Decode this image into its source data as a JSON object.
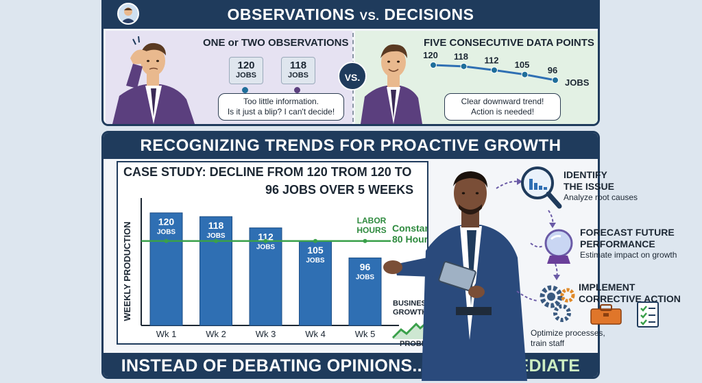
{
  "top": {
    "title_main1": "OBSERVATIONS",
    "title_vs": "VS.",
    "title_main2": "DECISIONS",
    "vs_badge": "VS.",
    "left": {
      "heading": "ONE or TWO OBSERVATIONS",
      "observations": [
        {
          "value": "120",
          "unit": "JOBS"
        },
        {
          "value": "118",
          "unit": "JOBS"
        }
      ],
      "bubble_line1": "Too little information.",
      "bubble_line2": "Is it just a blip? I can't decide!"
    },
    "right": {
      "heading": "FIVE CONSECUTIVE DATA POINTS",
      "points": [
        "120",
        "118",
        "112",
        "105",
        "96"
      ],
      "unit": "JOBS",
      "bubble_line1": "Clear downward trend!",
      "bubble_line2": "Action is needed!"
    }
  },
  "bottom": {
    "title": "RECOGNIZING TRENDS FOR PROACTIVE GROWTH",
    "case_line1": "CASE STUDY: DECLINE FROM 120 TROM 120 TO",
    "case_line2": "96 JOBS OVER 5 WEEKS",
    "footer_part1": "INSTEAD OF DEBATING OPINIONS...",
    "footer_part2": "TAKE IMMEDIATE ACTION"
  },
  "chart_data": {
    "type": "bar",
    "categories": [
      "Wk 1",
      "Wk 2",
      "Wk 3",
      "Wk 4",
      "Wk 5"
    ],
    "values": [
      120,
      118,
      112,
      105,
      96
    ],
    "data_labels": [
      "120",
      "118",
      "112",
      "105",
      "96"
    ],
    "bar_unit": "JOBS",
    "ylabel": "WEEKLY PRODUCTION",
    "reference_line": {
      "value": 105,
      "label1": "LABOR",
      "label2": "HOURS",
      "note1": "Constant",
      "note2": "80 Hours"
    },
    "ylim": [
      60,
      125
    ],
    "colors": {
      "bar": "#2f6fb3",
      "reference": "#3aa04a"
    }
  },
  "badge": {
    "line1": "BUSINESS",
    "line2": "GROWTH",
    "line3": "PROBLEM"
  },
  "steps": [
    {
      "title1": "IDENTIFY",
      "title2": "THE ISSUE",
      "desc1": "Analyze root causes",
      "desc2": ""
    },
    {
      "title1": "FORECAST FUTURE",
      "title2": "PERFORMANCE",
      "desc1": "Estimate impact on growth",
      "desc2": ""
    },
    {
      "title1": "IMPLEMENT",
      "title2": "CORRECTIVE ACTION",
      "desc1": "Optimize processes,",
      "desc2": "train staff"
    }
  ]
}
